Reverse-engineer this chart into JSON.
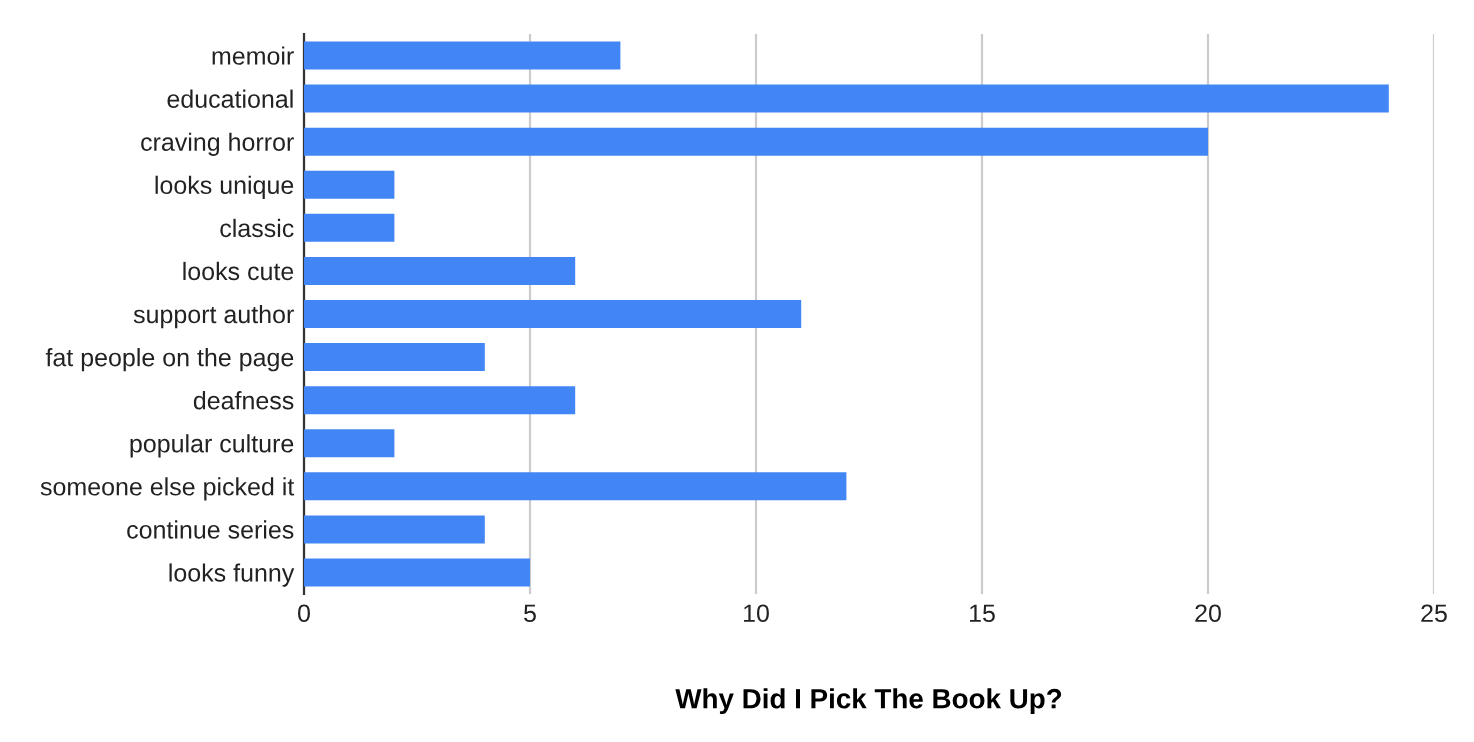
{
  "chart_data": {
    "type": "bar",
    "orientation": "horizontal",
    "xlabel": "Why Did I Pick The Book Up?",
    "categories": [
      "memoir",
      "educational",
      "craving horror",
      "looks unique",
      "classic",
      "looks cute",
      "support author",
      "fat people on the page",
      "deafness",
      "popular culture",
      "someone else picked it",
      "continue series",
      "looks funny"
    ],
    "values": [
      7,
      24,
      20,
      2,
      2,
      6,
      11,
      4,
      6,
      2,
      12,
      4,
      5
    ],
    "color": "#4285f4",
    "xlim": [
      0,
      25
    ],
    "xticks": [
      0,
      5,
      10,
      15,
      20,
      25
    ],
    "grid": "x",
    "legend": false
  }
}
